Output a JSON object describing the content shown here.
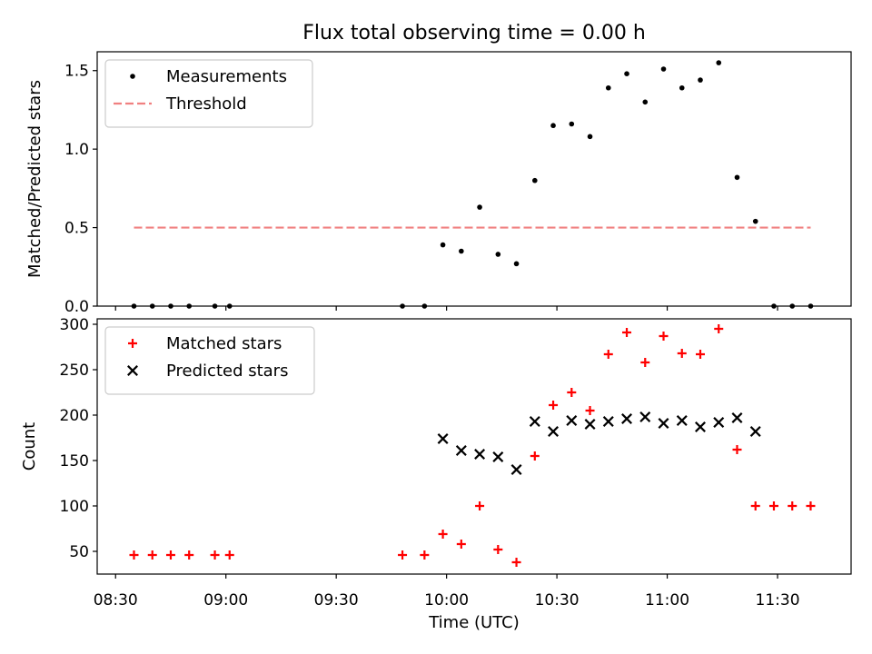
{
  "figure": {
    "title": "Flux total observing time = 0.00 h",
    "xlabel": "Time (UTC)",
    "x_ticks": [
      "08:30",
      "09:00",
      "09:30",
      "10:00",
      "10:30",
      "11:00",
      "11:30"
    ]
  },
  "chart_data": [
    {
      "type": "scatter",
      "title": "Flux total observing time = 0.00 h",
      "xlabel": "",
      "ylabel": "Matched/Predicted stars",
      "xlim": [
        "08:25",
        "11:50"
      ],
      "ylim": [
        0,
        1.62
      ],
      "y_ticks": [
        "0.0",
        "0.5",
        "1.0",
        "1.5"
      ],
      "legend_position": "top-left",
      "series": [
        {
          "name": "Measurements",
          "marker": "dot",
          "color": "#000000",
          "points": [
            [
              "08:35",
              0
            ],
            [
              "08:40",
              0
            ],
            [
              "08:45",
              0
            ],
            [
              "08:50",
              0
            ],
            [
              "08:57",
              0
            ],
            [
              "09:01",
              0
            ],
            [
              "09:48",
              0
            ],
            [
              "09:54",
              0
            ],
            [
              "09:59",
              0.39
            ],
            [
              "10:04",
              0.35
            ],
            [
              "10:09",
              0.63
            ],
            [
              "10:14",
              0.33
            ],
            [
              "10:19",
              0.27
            ],
            [
              "10:24",
              0.8
            ],
            [
              "10:29",
              1.15
            ],
            [
              "10:34",
              1.16
            ],
            [
              "10:39",
              1.08
            ],
            [
              "10:44",
              1.39
            ],
            [
              "10:49",
              1.48
            ],
            [
              "10:54",
              1.3
            ],
            [
              "10:59",
              1.51
            ],
            [
              "11:04",
              1.39
            ],
            [
              "11:09",
              1.44
            ],
            [
              "11:14",
              1.55
            ],
            [
              "11:19",
              0.82
            ],
            [
              "11:24",
              0.54
            ],
            [
              "11:29",
              0
            ],
            [
              "11:34",
              0
            ],
            [
              "11:39",
              0
            ]
          ]
        },
        {
          "name": "Threshold",
          "type": "line",
          "style": "dashed",
          "color": "#f08080",
          "points": [
            [
              "08:35",
              0.5
            ],
            [
              "11:39",
              0.5
            ]
          ]
        }
      ]
    },
    {
      "type": "scatter",
      "title": "",
      "xlabel": "Time (UTC)",
      "ylabel": "Count",
      "xlim": [
        "08:25",
        "11:50"
      ],
      "ylim": [
        25,
        306
      ],
      "y_ticks": [
        "50",
        "100",
        "150",
        "200",
        "250",
        "300"
      ],
      "legend_position": "top-left",
      "series": [
        {
          "name": "Matched stars",
          "marker": "plus",
          "color": "#ff0000",
          "points": [
            [
              "08:35",
              46
            ],
            [
              "08:40",
              46
            ],
            [
              "08:45",
              46
            ],
            [
              "08:50",
              46
            ],
            [
              "08:57",
              46
            ],
            [
              "09:01",
              46
            ],
            [
              "09:48",
              46
            ],
            [
              "09:54",
              46
            ],
            [
              "09:59",
              69
            ],
            [
              "10:04",
              58
            ],
            [
              "10:09",
              100
            ],
            [
              "10:14",
              52
            ],
            [
              "10:19",
              38
            ],
            [
              "10:24",
              155
            ],
            [
              "10:29",
              211
            ],
            [
              "10:34",
              225
            ],
            [
              "10:39",
              205
            ],
            [
              "10:44",
              267
            ],
            [
              "10:49",
              291
            ],
            [
              "10:54",
              258
            ],
            [
              "10:59",
              287
            ],
            [
              "11:04",
              268
            ],
            [
              "11:09",
              267
            ],
            [
              "11:14",
              295
            ],
            [
              "11:19",
              162
            ],
            [
              "11:24",
              100
            ],
            [
              "11:29",
              100
            ],
            [
              "11:34",
              100
            ],
            [
              "11:39",
              100
            ]
          ]
        },
        {
          "name": "Predicted stars",
          "marker": "x",
          "color": "#000000",
          "points": [
            [
              "09:59",
              174
            ],
            [
              "10:04",
              161
            ],
            [
              "10:09",
              157
            ],
            [
              "10:14",
              154
            ],
            [
              "10:19",
              140
            ],
            [
              "10:24",
              193
            ],
            [
              "10:29",
              182
            ],
            [
              "10:34",
              194
            ],
            [
              "10:39",
              190
            ],
            [
              "10:44",
              193
            ],
            [
              "10:49",
              196
            ],
            [
              "10:54",
              198
            ],
            [
              "10:59",
              191
            ],
            [
              "11:04",
              194
            ],
            [
              "11:09",
              187
            ],
            [
              "11:14",
              192
            ],
            [
              "11:19",
              197
            ],
            [
              "11:24",
              182
            ]
          ]
        }
      ]
    }
  ]
}
